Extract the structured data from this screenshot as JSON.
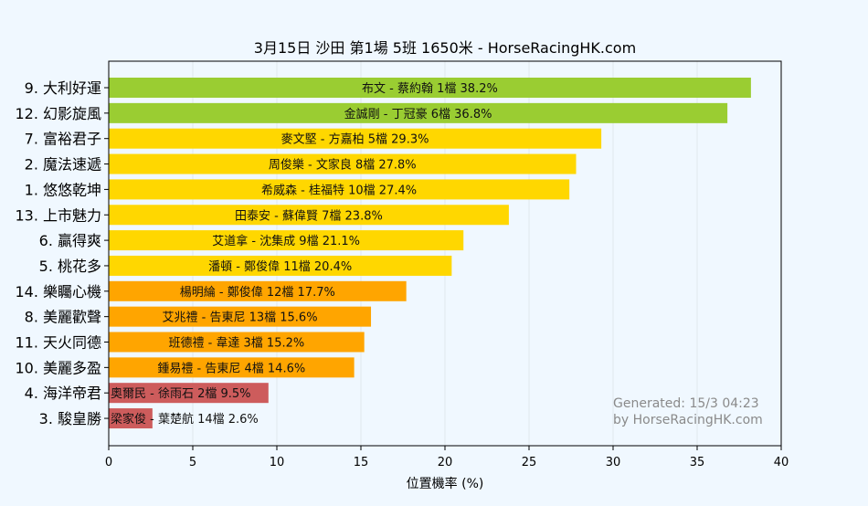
{
  "chart_data": {
    "type": "bar",
    "orientation": "horizontal",
    "title": "3月15日 沙田 第1場 5班 1650米 - HorseRacingHK.com",
    "xlabel": "位置機率 (%)",
    "ylabel": "",
    "xlim": [
      0,
      40
    ],
    "xticks": [
      0,
      5,
      10,
      15,
      20,
      25,
      30,
      35,
      40
    ],
    "grid": true,
    "categories": [
      "9. 大利好運",
      "12. 幻影旋風",
      "7. 富裕君子",
      "2. 魔法速遞",
      "1. 悠悠乾坤",
      "13. 上市魅力",
      "6. 贏得爽",
      "5. 桃花多",
      "14. 樂矚心機",
      "8. 美麗歡聲",
      "11. 天火同德",
      "10. 美麗多盈",
      "4. 海洋帝君",
      "3. 駿皇勝"
    ],
    "values": [
      38.2,
      36.8,
      29.3,
      27.8,
      27.4,
      23.8,
      21.1,
      20.4,
      17.7,
      15.6,
      15.2,
      14.6,
      9.5,
      2.6
    ],
    "bar_labels": [
      "布文 - 蔡約翰 1檔  38.2%",
      "金誠剛 - 丁冠豪 6檔  36.8%",
      "麥文堅 - 方嘉柏 5檔  29.3%",
      "周俊樂 - 文家良 8檔  27.8%",
      "希威森 - 桂福特 10檔  27.4%",
      "田泰安 - 蘇偉賢 7檔  23.8%",
      "艾道拿 - 沈集成 9檔  21.1%",
      "潘頓 - 鄭俊偉 11檔  20.4%",
      "楊明綸 - 鄭俊偉 12檔  17.7%",
      "艾兆禮 - 告東尼 13檔  15.6%",
      "班德禮 - 韋達 3檔  15.2%",
      "鍾易禮 - 告東尼 4檔  14.6%",
      "奧爾民 - 徐雨石 2檔  9.5%",
      "梁家俊 - 葉楚航 14檔  2.6%"
    ],
    "colors": [
      "#9acd32",
      "#9acd32",
      "#ffd700",
      "#ffd700",
      "#ffd700",
      "#ffd700",
      "#ffd700",
      "#ffd700",
      "#ffa500",
      "#ffa500",
      "#ffa500",
      "#ffa500",
      "#cd5c5c",
      "#cd5c5c"
    ],
    "annotation": [
      "Generated: 15/3 04:23",
      "by HorseRacingHK.com"
    ]
  }
}
